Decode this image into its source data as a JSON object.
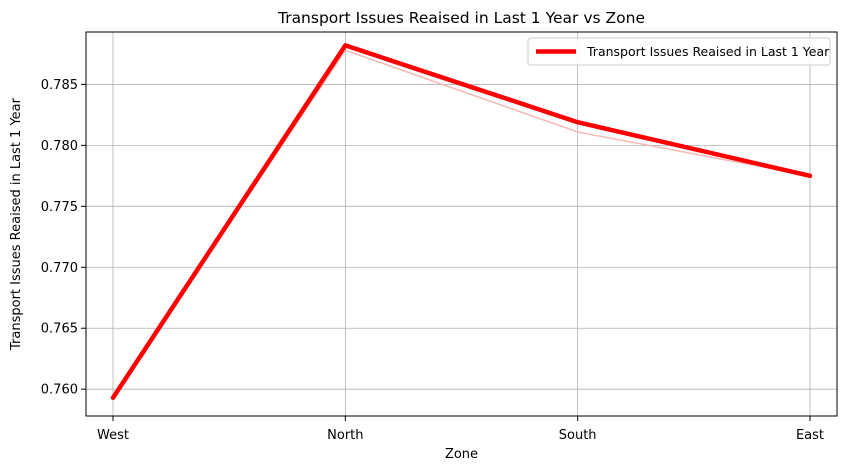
{
  "chart_data": {
    "type": "line",
    "title": "Transport Issues Reaised in Last 1 Year vs Zone",
    "xlabel": "Zone",
    "ylabel": "Transport Issues Reaised in Last 1 Year",
    "categories": [
      "West",
      "North",
      "South",
      "East"
    ],
    "series": [
      {
        "name": "Transport Issues Reaised in Last 1 Year",
        "values": [
          0.7593,
          0.7882,
          0.7819,
          0.7775
        ],
        "color": "#ff0000",
        "style": "thick"
      },
      {
        "values": [
          0.7593,
          0.7878,
          0.7811,
          0.7775
        ],
        "color": "#f4b9b5",
        "style": "thin"
      }
    ],
    "ylim": [
      0.7578,
      0.7893
    ],
    "yticks": [
      0.76,
      0.765,
      0.77,
      0.775,
      0.78,
      0.785
    ],
    "ytick_labels": [
      "0.760",
      "0.765",
      "0.770",
      "0.775",
      "0.780",
      "0.785"
    ],
    "grid": true,
    "legend_position": "top-right"
  }
}
